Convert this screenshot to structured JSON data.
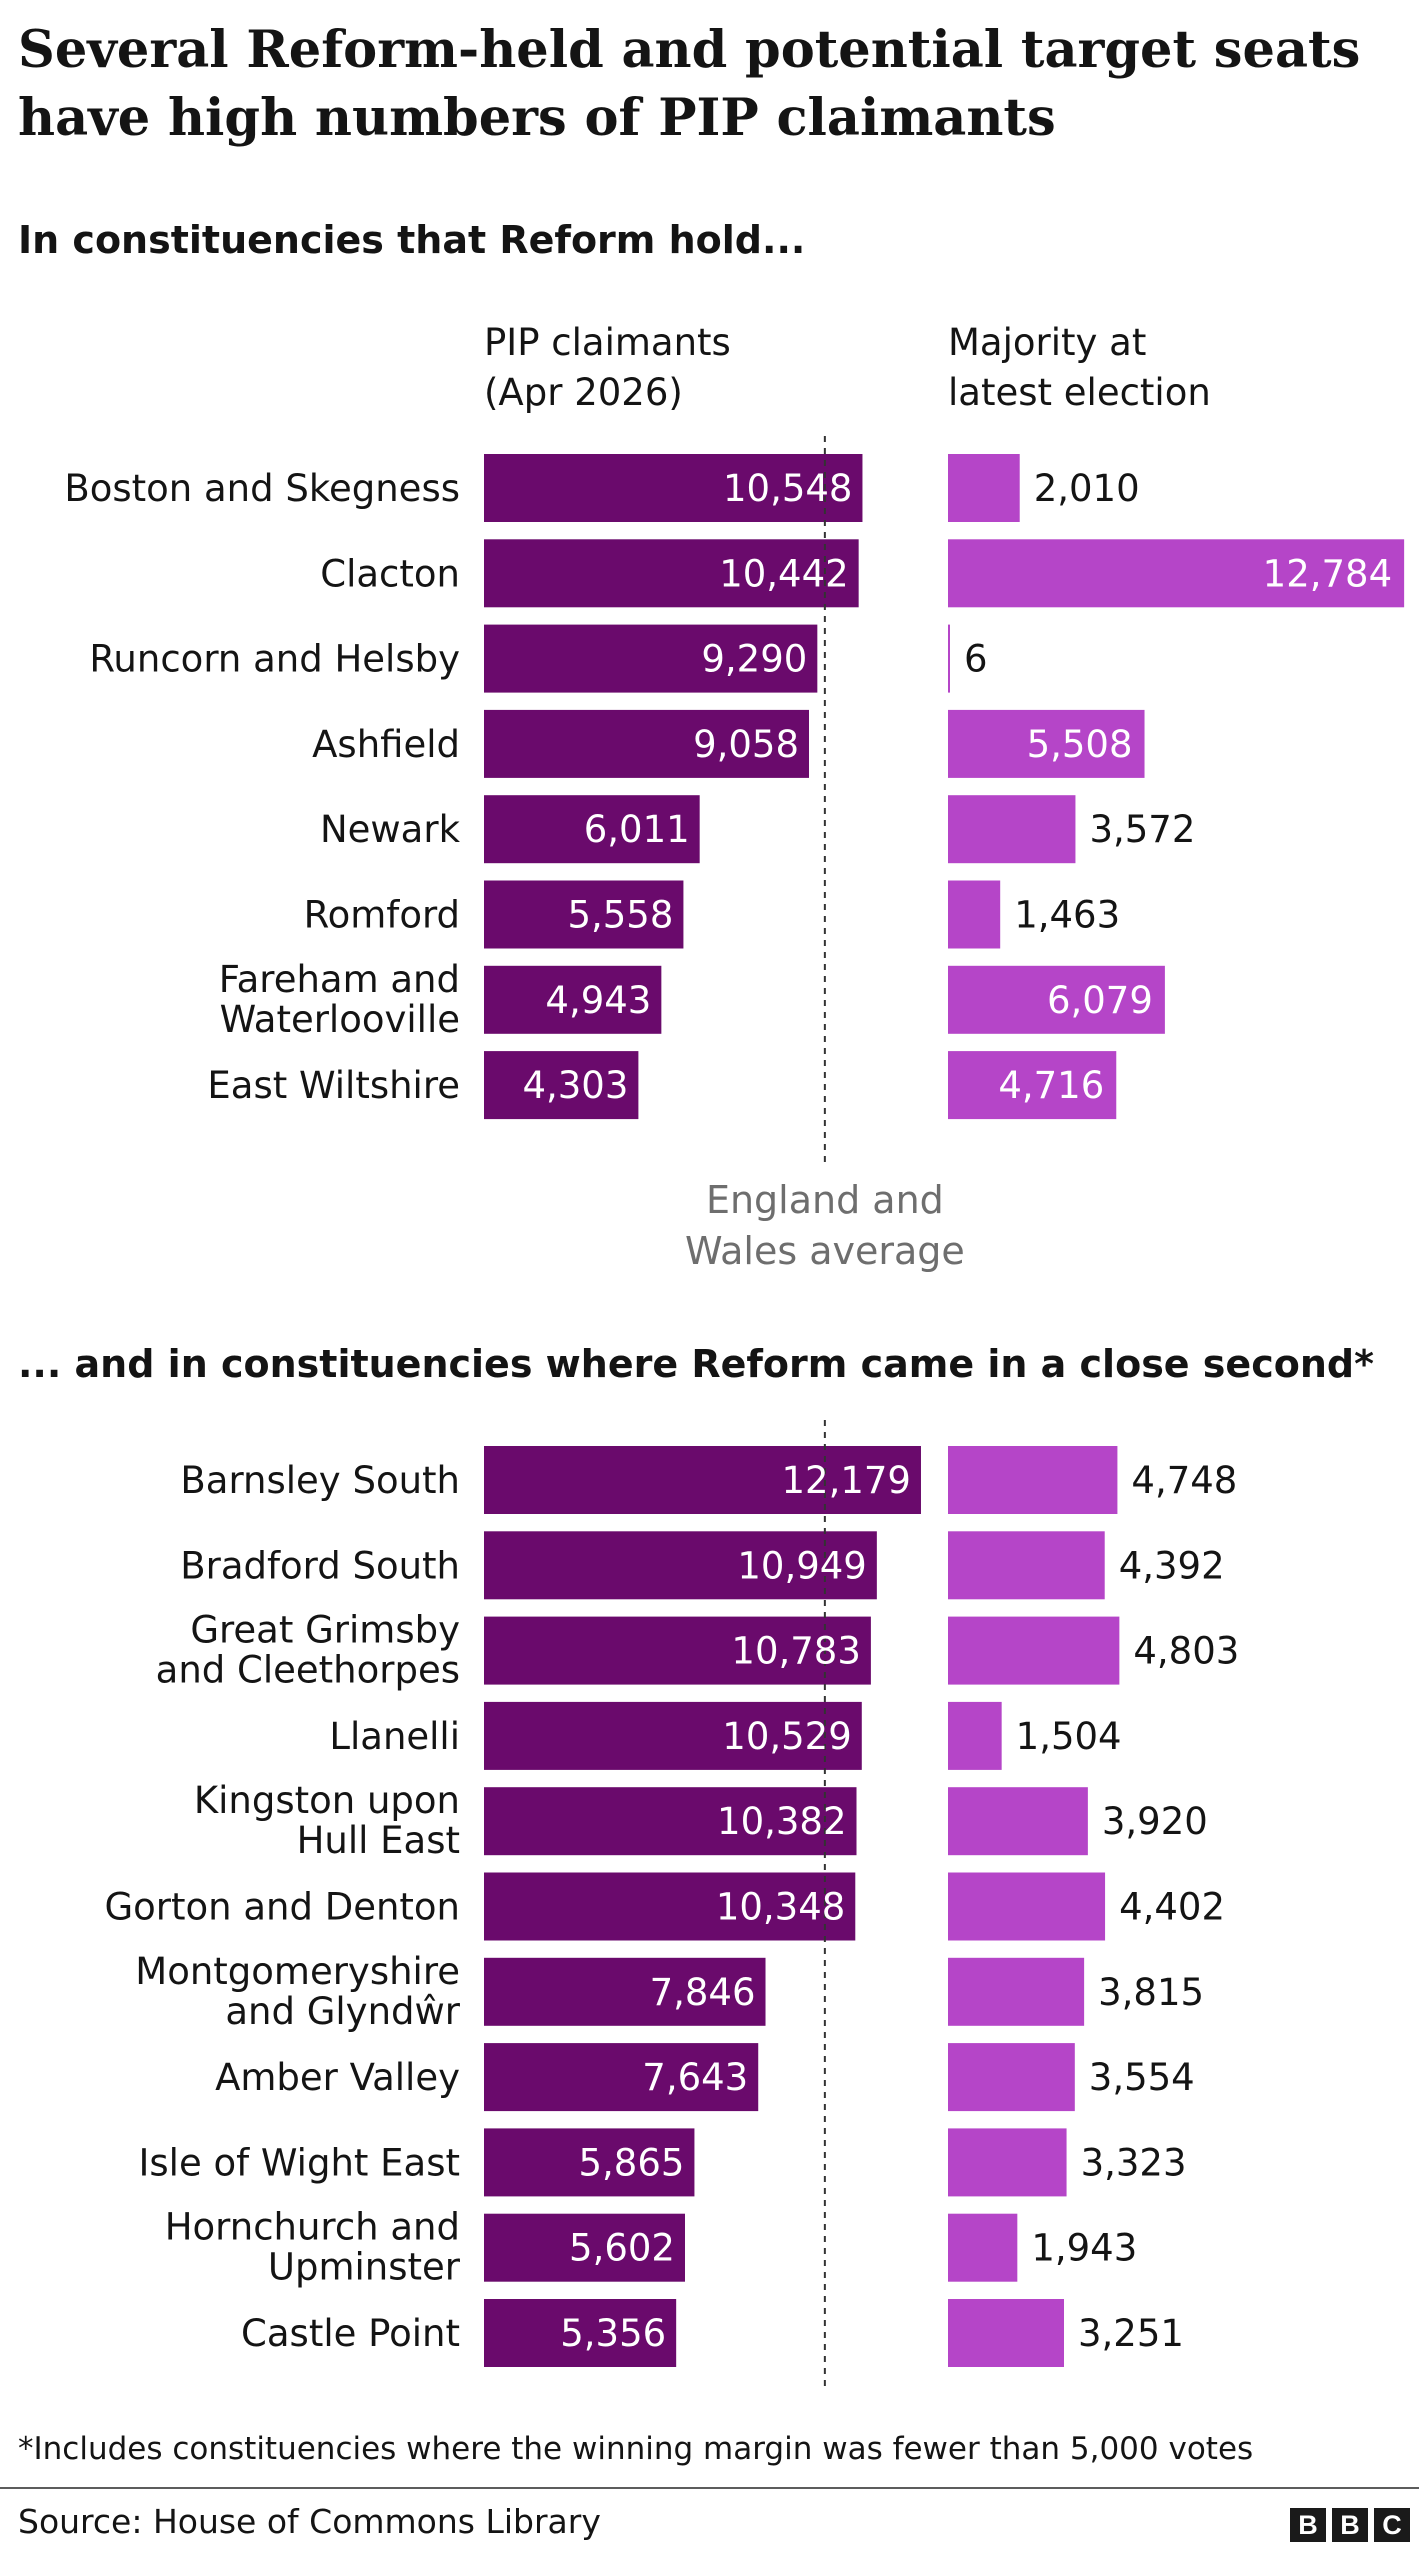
{
  "title": "Several Reform-held and potential target seats have high numbers of PIP claimants",
  "footnote": "*Includes constituencies where the winning margin was fewer than 5,000 votes",
  "source": "Source: House of Commons Library",
  "logo_letters": [
    "B",
    "B",
    "C"
  ],
  "colors": {
    "pip_bar": "#6a0a6c",
    "majority_bar": "#b545c8",
    "average_line": "#333333"
  },
  "chart_data": {
    "type": "bar",
    "orientation": "horizontal",
    "columns": [
      {
        "key": "pip",
        "header_line1": "PIP claimants",
        "header_line2": "(Apr 2026)"
      },
      {
        "key": "majority",
        "header_line1": "Majority at",
        "header_line2": "latest election"
      }
    ],
    "reference_line": {
      "label_line1": "England and",
      "label_line2": "Wales average",
      "value": 9500
    },
    "groups": [
      {
        "heading": "In constituencies that Reform hold...",
        "rows": [
          {
            "name": [
              "Boston and Skegness"
            ],
            "pip": 10548,
            "pip_label": "10,548",
            "majority": 2010,
            "majority_label": "2,010"
          },
          {
            "name": [
              "Clacton"
            ],
            "pip": 10442,
            "pip_label": "10,442",
            "majority": 12784,
            "majority_label": "12,784"
          },
          {
            "name": [
              "Runcorn and Helsby"
            ],
            "pip": 9290,
            "pip_label": "9,290",
            "majority": 6,
            "majority_label": "6"
          },
          {
            "name": [
              "Ashfield"
            ],
            "pip": 9058,
            "pip_label": "9,058",
            "majority": 5508,
            "majority_label": "5,508"
          },
          {
            "name": [
              "Newark"
            ],
            "pip": 6011,
            "pip_label": "6,011",
            "majority": 3572,
            "majority_label": "3,572"
          },
          {
            "name": [
              "Romford"
            ],
            "pip": 5558,
            "pip_label": "5,558",
            "majority": 1463,
            "majority_label": "1,463"
          },
          {
            "name": [
              "Fareham and",
              "Waterlooville"
            ],
            "pip": 4943,
            "pip_label": "4,943",
            "majority": 6079,
            "majority_label": "6,079"
          },
          {
            "name": [
              "East Wiltshire"
            ],
            "pip": 4303,
            "pip_label": "4,303",
            "majority": 4716,
            "majority_label": "4,716"
          }
        ]
      },
      {
        "heading": "... and in constituencies where Reform came in a close second*",
        "rows": [
          {
            "name": [
              "Barnsley South"
            ],
            "pip": 12179,
            "pip_label": "12,179",
            "majority": 4748,
            "majority_label": "4,748"
          },
          {
            "name": [
              "Bradford South"
            ],
            "pip": 10949,
            "pip_label": "10,949",
            "majority": 4392,
            "majority_label": "4,392"
          },
          {
            "name": [
              "Great Grimsby",
              "and Cleethorpes"
            ],
            "pip": 10783,
            "pip_label": "10,783",
            "majority": 4803,
            "majority_label": "4,803"
          },
          {
            "name": [
              "Llanelli"
            ],
            "pip": 10529,
            "pip_label": "10,529",
            "majority": 1504,
            "majority_label": "1,504"
          },
          {
            "name": [
              "Kingston upon",
              "Hull East"
            ],
            "pip": 10382,
            "pip_label": "10,382",
            "majority": 3920,
            "majority_label": "3,920"
          },
          {
            "name": [
              "Gorton and Denton"
            ],
            "pip": 10348,
            "pip_label": "10,348",
            "majority": 4402,
            "majority_label": "4,402"
          },
          {
            "name": [
              "Montgomeryshire",
              "and Glyndŵr"
            ],
            "pip": 7846,
            "pip_label": "7,846",
            "majority": 3815,
            "majority_label": "3,815"
          },
          {
            "name": [
              "Amber Valley"
            ],
            "pip": 7643,
            "pip_label": "7,643",
            "majority": 3554,
            "majority_label": "3,554"
          },
          {
            "name": [
              "Isle of Wight East"
            ],
            "pip": 5865,
            "pip_label": "5,865",
            "majority": 3323,
            "majority_label": "3,323"
          },
          {
            "name": [
              "Hornchurch and",
              "Upminster"
            ],
            "pip": 5602,
            "pip_label": "5,602",
            "majority": 1943,
            "majority_label": "1,943"
          },
          {
            "name": [
              "Castle Point"
            ],
            "pip": 5356,
            "pip_label": "5,356",
            "majority": 3251,
            "majority_label": "3,251"
          }
        ]
      }
    ]
  }
}
